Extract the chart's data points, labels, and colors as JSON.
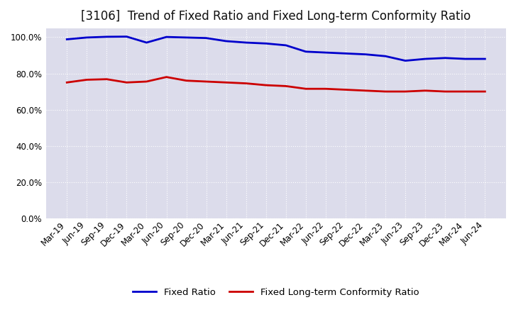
{
  "title": "[3106]  Trend of Fixed Ratio and Fixed Long-term Conformity Ratio",
  "labels": [
    "Mar-19",
    "Jun-19",
    "Sep-19",
    "Dec-19",
    "Mar-20",
    "Jun-20",
    "Sep-20",
    "Dec-20",
    "Mar-21",
    "Jun-21",
    "Sep-21",
    "Dec-21",
    "Mar-22",
    "Jun-22",
    "Sep-22",
    "Dec-22",
    "Mar-23",
    "Jun-23",
    "Sep-23",
    "Dec-23",
    "Mar-24",
    "Jun-24"
  ],
  "fixed_ratio": [
    98.8,
    99.8,
    100.2,
    100.3,
    97.0,
    100.1,
    99.8,
    99.5,
    97.8,
    97.0,
    96.5,
    95.5,
    92.0,
    91.5,
    91.0,
    90.5,
    89.5,
    87.0,
    88.0,
    88.5,
    88.0,
    88.0
  ],
  "fixed_lt_ratio": [
    75.0,
    76.5,
    76.8,
    75.0,
    75.5,
    78.0,
    76.0,
    75.5,
    75.0,
    74.5,
    73.5,
    73.0,
    71.5,
    71.5,
    71.0,
    70.5,
    70.0,
    70.0,
    70.5,
    70.0,
    70.0,
    70.0
  ],
  "fixed_ratio_color": "#0000cc",
  "fixed_lt_ratio_color": "#cc0000",
  "background_color": "#ffffff",
  "plot_background_color": "#dcdceb",
  "grid_color": "#ffffff",
  "ylim": [
    0,
    105
  ],
  "yticks": [
    0,
    20,
    40,
    60,
    80,
    100
  ],
  "legend_fixed_ratio": "Fixed Ratio",
  "legend_fixed_lt_ratio": "Fixed Long-term Conformity Ratio",
  "line_width": 2.0,
  "title_fontsize": 12,
  "tick_fontsize": 8.5,
  "legend_fontsize": 9.5
}
